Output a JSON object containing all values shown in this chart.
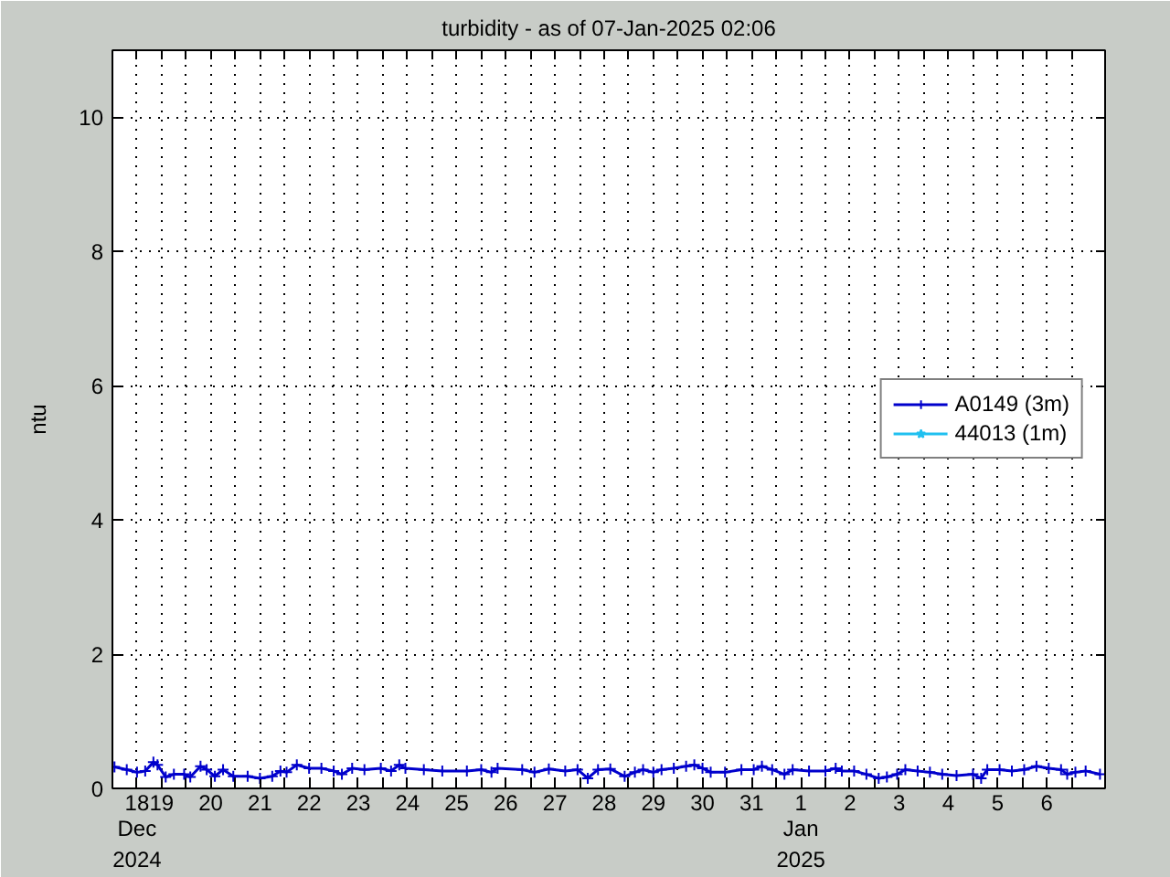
{
  "chart_data": {
    "type": "line",
    "title": "turbidity - as of 07-Jan-2025 02:06",
    "ylabel": "ntu",
    "x": [
      "2024-12-18T01:00",
      "2024-12-18T07:00",
      "2024-12-18T12:00",
      "2024-12-18T16:00",
      "2024-12-18T20:00",
      "2024-12-18T22:00",
      "2024-12-19T02:00",
      "2024-12-19T06:00",
      "2024-12-19T11:00",
      "2024-12-19T14:00",
      "2024-12-19T19:00",
      "2024-12-19T22:00",
      "2024-12-20T02:00",
      "2024-12-20T06:00",
      "2024-12-20T11:00",
      "2024-12-20T18:00",
      "2024-12-21T00:00",
      "2024-12-21T06:00",
      "2024-12-21T10:00",
      "2024-12-21T13:00",
      "2024-12-21T18:00",
      "2024-12-22T00:00",
      "2024-12-22T06:00",
      "2024-12-22T12:00",
      "2024-12-22T16:00",
      "2024-12-22T21:00",
      "2024-12-23T03:00",
      "2024-12-23T11:00",
      "2024-12-23T16:00",
      "2024-12-23T20:00",
      "2024-12-23T23:00",
      "2024-12-24T08:00",
      "2024-12-24T17:00",
      "2024-12-25T05:00",
      "2024-12-25T12:00",
      "2024-12-25T17:00",
      "2024-12-25T20:00",
      "2024-12-26T08:00",
      "2024-12-26T14:00",
      "2024-12-26T21:00",
      "2024-12-27T05:00",
      "2024-12-27T11:00",
      "2024-12-27T16:00",
      "2024-12-27T21:00",
      "2024-12-28T03:00",
      "2024-12-28T10:00",
      "2024-12-28T15:00",
      "2024-12-28T19:00",
      "2024-12-29T00:00",
      "2024-12-29T04:00",
      "2024-12-29T10:00",
      "2024-12-29T16:00",
      "2024-12-29T20:00",
      "2024-12-30T00:00",
      "2024-12-30T04:00",
      "2024-12-30T11:00",
      "2024-12-30T19:00",
      "2024-12-31T01:00",
      "2024-12-31T05:00",
      "2024-12-31T10:00",
      "2024-12-31T16:00",
      "2024-12-31T20:00",
      "2025-01-01T04:00",
      "2025-01-01T12:00",
      "2025-01-01T17:00",
      "2025-01-01T20:00",
      "2025-01-02T02:00",
      "2025-01-02T08:00",
      "2025-01-02T14:00",
      "2025-01-02T18:00",
      "2025-01-02T23:00",
      "2025-01-03T03:00",
      "2025-01-03T09:00",
      "2025-01-03T15:00",
      "2025-01-03T21:00",
      "2025-01-04T04:00",
      "2025-01-04T12:00",
      "2025-01-04T16:00",
      "2025-01-04T19:00",
      "2025-01-05T01:00",
      "2025-01-05T07:00",
      "2025-01-05T13:00",
      "2025-01-05T19:00",
      "2025-01-06T01:00",
      "2025-01-06T07:00",
      "2025-01-06T10:00",
      "2025-01-06T14:00",
      "2025-01-06T19:00",
      "2025-01-07T02:00"
    ],
    "series": [
      {
        "name": "A0149 (3m)",
        "color": "#0000cc",
        "marker": "cross",
        "values": [
          0.32,
          0.28,
          0.24,
          0.26,
          0.39,
          0.35,
          0.17,
          0.21,
          0.21,
          0.17,
          0.33,
          0.28,
          0.18,
          0.28,
          0.18,
          0.18,
          0.15,
          0.18,
          0.26,
          0.24,
          0.35,
          0.3,
          0.3,
          0.26,
          0.21,
          0.3,
          0.28,
          0.3,
          0.26,
          0.35,
          0.3,
          0.28,
          0.26,
          0.26,
          0.28,
          0.24,
          0.3,
          0.28,
          0.24,
          0.29,
          0.26,
          0.28,
          0.15,
          0.28,
          0.29,
          0.18,
          0.24,
          0.28,
          0.24,
          0.28,
          0.3,
          0.33,
          0.35,
          0.3,
          0.24,
          0.24,
          0.28,
          0.28,
          0.33,
          0.28,
          0.21,
          0.28,
          0.26,
          0.26,
          0.3,
          0.26,
          0.26,
          0.21,
          0.15,
          0.17,
          0.21,
          0.28,
          0.26,
          0.24,
          0.21,
          0.19,
          0.21,
          0.15,
          0.28,
          0.28,
          0.26,
          0.28,
          0.33,
          0.3,
          0.28,
          0.21,
          0.24,
          0.26,
          0.21
        ]
      },
      {
        "name": "44013 (1m)",
        "color": "#20c0f0",
        "marker": "star",
        "values": [
          null,
          null,
          null,
          null,
          null,
          null,
          null,
          null,
          null,
          null,
          null,
          null,
          null,
          null,
          null,
          null,
          null,
          null,
          null,
          null,
          null,
          null,
          null,
          null,
          null,
          null,
          null,
          null,
          null,
          null,
          null,
          null,
          null,
          null,
          null,
          null,
          null,
          null,
          null,
          null,
          null,
          null,
          null,
          null,
          null,
          null,
          null,
          null,
          null,
          null,
          null,
          null,
          null,
          null,
          null,
          null,
          null,
          null,
          null,
          null,
          null,
          null,
          null,
          null,
          null,
          null,
          null,
          null,
          null,
          null,
          null,
          null,
          null,
          null,
          null,
          null,
          null,
          null,
          null,
          null,
          null,
          null,
          null,
          null,
          null,
          null,
          null,
          null,
          null
        ]
      }
    ],
    "xlim": [
      "2024-12-18T00:00",
      "2025-01-07T04:30"
    ],
    "xticks": [
      {
        "value": "2024-12-18T12:00",
        "label": "18"
      },
      {
        "value": "2024-12-19T00:00",
        "label": "19"
      },
      {
        "value": "2024-12-19T12:00",
        "label": null
      },
      {
        "value": "2024-12-20T00:00",
        "label": "20"
      },
      {
        "value": "2024-12-20T12:00",
        "label": null
      },
      {
        "value": "2024-12-21T00:00",
        "label": "21"
      },
      {
        "value": "2024-12-21T12:00",
        "label": null
      },
      {
        "value": "2024-12-22T00:00",
        "label": "22"
      },
      {
        "value": "2024-12-22T12:00",
        "label": null
      },
      {
        "value": "2024-12-23T00:00",
        "label": "23"
      },
      {
        "value": "2024-12-23T12:00",
        "label": null
      },
      {
        "value": "2024-12-24T00:00",
        "label": "24"
      },
      {
        "value": "2024-12-24T12:00",
        "label": null
      },
      {
        "value": "2024-12-25T00:00",
        "label": "25"
      },
      {
        "value": "2024-12-25T12:00",
        "label": null
      },
      {
        "value": "2024-12-26T00:00",
        "label": "26"
      },
      {
        "value": "2024-12-26T12:00",
        "label": null
      },
      {
        "value": "2024-12-27T00:00",
        "label": "27"
      },
      {
        "value": "2024-12-27T12:00",
        "label": null
      },
      {
        "value": "2024-12-28T00:00",
        "label": "28"
      },
      {
        "value": "2024-12-28T12:00",
        "label": null
      },
      {
        "value": "2024-12-29T00:00",
        "label": "29"
      },
      {
        "value": "2024-12-29T12:00",
        "label": null
      },
      {
        "value": "2024-12-30T00:00",
        "label": "30"
      },
      {
        "value": "2024-12-30T12:00",
        "label": null
      },
      {
        "value": "2024-12-31T00:00",
        "label": "31"
      },
      {
        "value": "2024-12-31T12:00",
        "label": null
      },
      {
        "value": "2025-01-01T00:00",
        "label": "1"
      },
      {
        "value": "2025-01-01T12:00",
        "label": null
      },
      {
        "value": "2025-01-02T00:00",
        "label": "2"
      },
      {
        "value": "2025-01-02T12:00",
        "label": null
      },
      {
        "value": "2025-01-03T00:00",
        "label": "3"
      },
      {
        "value": "2025-01-03T12:00",
        "label": null
      },
      {
        "value": "2025-01-04T00:00",
        "label": "4"
      },
      {
        "value": "2025-01-04T12:00",
        "label": null
      },
      {
        "value": "2025-01-05T00:00",
        "label": "5"
      },
      {
        "value": "2025-01-05T12:00",
        "label": null
      },
      {
        "value": "2025-01-06T00:00",
        "label": "6"
      },
      {
        "value": "2025-01-06T12:00",
        "label": null
      }
    ],
    "annotations": [
      "Dec\n2024",
      "Jan\n2025"
    ],
    "ylim": [
      0,
      11
    ],
    "yticks": [
      0,
      2,
      4,
      6,
      8,
      10
    ],
    "grid": true,
    "legend": "right"
  }
}
